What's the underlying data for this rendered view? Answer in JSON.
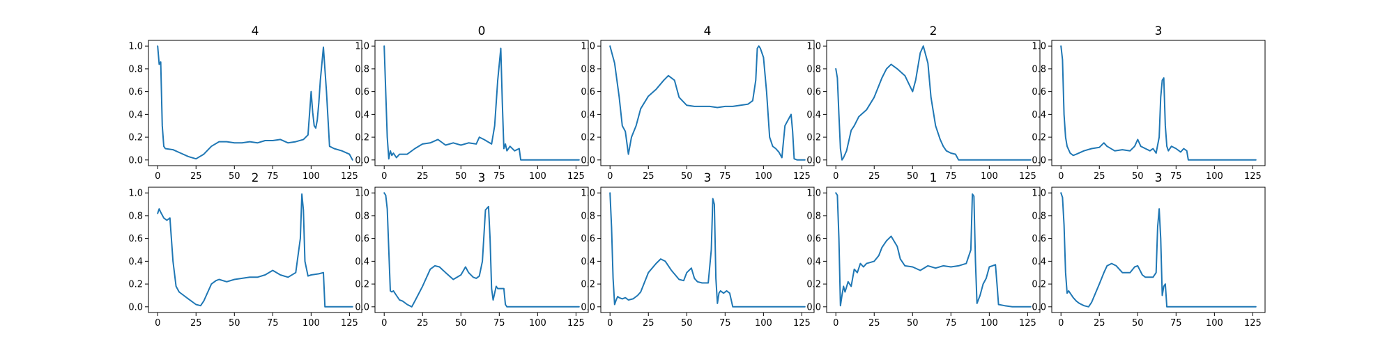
{
  "chart_data": [
    {
      "type": "line",
      "title": "4",
      "xlim": [
        -6,
        133
      ],
      "ylim": [
        -0.05,
        1.05
      ],
      "xticks": [
        0,
        25,
        50,
        75,
        100,
        125
      ],
      "yticks": [
        0.0,
        0.2,
        0.4,
        0.6,
        0.8,
        1.0
      ],
      "x": [
        0,
        1,
        2,
        3,
        4,
        5,
        10,
        15,
        20,
        25,
        30,
        35,
        40,
        45,
        50,
        55,
        60,
        65,
        70,
        75,
        80,
        85,
        90,
        95,
        98,
        100,
        101,
        102,
        103,
        104,
        105,
        106,
        108,
        110,
        112,
        115,
        120,
        125,
        127
      ],
      "y": [
        1.0,
        0.84,
        0.86,
        0.3,
        0.12,
        0.1,
        0.09,
        0.06,
        0.03,
        0.01,
        0.05,
        0.12,
        0.16,
        0.16,
        0.15,
        0.15,
        0.16,
        0.15,
        0.17,
        0.17,
        0.18,
        0.15,
        0.16,
        0.18,
        0.22,
        0.6,
        0.42,
        0.3,
        0.28,
        0.35,
        0.5,
        0.7,
        0.99,
        0.6,
        0.12,
        0.1,
        0.08,
        0.05,
        0.0
      ]
    },
    {
      "type": "line",
      "title": "0",
      "xlim": [
        -6,
        133
      ],
      "ylim": [
        -0.05,
        1.05
      ],
      "xticks": [
        0,
        25,
        50,
        75,
        100,
        125
      ],
      "yticks": [
        0.0,
        0.2,
        0.4,
        0.6,
        0.8,
        1.0
      ],
      "x": [
        0,
        1,
        2,
        3,
        4,
        5,
        6,
        8,
        10,
        15,
        20,
        25,
        30,
        35,
        40,
        45,
        50,
        55,
        60,
        62,
        65,
        70,
        72,
        74,
        76,
        77,
        78,
        79,
        80,
        82,
        85,
        88,
        89,
        90,
        127
      ],
      "y": [
        1.0,
        0.6,
        0.2,
        0.01,
        0.08,
        0.04,
        0.06,
        0.02,
        0.05,
        0.05,
        0.1,
        0.14,
        0.15,
        0.18,
        0.13,
        0.15,
        0.13,
        0.15,
        0.14,
        0.2,
        0.18,
        0.14,
        0.3,
        0.7,
        0.98,
        0.5,
        0.1,
        0.14,
        0.08,
        0.12,
        0.08,
        0.1,
        0.0,
        0.0,
        0.0
      ]
    },
    {
      "type": "line",
      "title": "4",
      "xlim": [
        -6,
        133
      ],
      "ylim": [
        -0.05,
        1.05
      ],
      "xticks": [
        0,
        25,
        50,
        75,
        100,
        125
      ],
      "yticks": [
        0.0,
        0.2,
        0.4,
        0.6,
        0.8,
        1.0
      ],
      "x": [
        0,
        3,
        6,
        8,
        10,
        12,
        14,
        17,
        20,
        25,
        30,
        35,
        38,
        42,
        45,
        50,
        55,
        60,
        65,
        70,
        75,
        80,
        85,
        90,
        93,
        95,
        96,
        97,
        98,
        100,
        102,
        104,
        106,
        108,
        110,
        112,
        114,
        116,
        118,
        119,
        120,
        122,
        125,
        127
      ],
      "y": [
        1.0,
        0.85,
        0.55,
        0.3,
        0.25,
        0.05,
        0.2,
        0.3,
        0.45,
        0.56,
        0.62,
        0.7,
        0.74,
        0.7,
        0.55,
        0.48,
        0.47,
        0.47,
        0.47,
        0.46,
        0.47,
        0.47,
        0.48,
        0.49,
        0.52,
        0.7,
        0.98,
        1.0,
        0.98,
        0.9,
        0.6,
        0.2,
        0.12,
        0.1,
        0.07,
        0.02,
        0.3,
        0.35,
        0.4,
        0.25,
        0.01,
        0.0,
        0.0,
        0.0
      ]
    },
    {
      "type": "line",
      "title": "2",
      "xlim": [
        -6,
        133
      ],
      "ylim": [
        -0.05,
        1.05
      ],
      "xticks": [
        0,
        25,
        50,
        75,
        100,
        125
      ],
      "yticks": [
        0.0,
        0.2,
        0.4,
        0.6,
        0.8,
        1.0
      ],
      "x": [
        0,
        1,
        2,
        3,
        4,
        5,
        7,
        10,
        12,
        15,
        20,
        25,
        30,
        33,
        36,
        40,
        45,
        50,
        52,
        55,
        57,
        60,
        62,
        65,
        68,
        70,
        72,
        75,
        78,
        80,
        127
      ],
      "y": [
        0.8,
        0.72,
        0.4,
        0.1,
        0.0,
        0.02,
        0.08,
        0.26,
        0.3,
        0.38,
        0.44,
        0.55,
        0.72,
        0.8,
        0.84,
        0.8,
        0.74,
        0.6,
        0.7,
        0.94,
        1.0,
        0.85,
        0.55,
        0.3,
        0.18,
        0.12,
        0.08,
        0.06,
        0.05,
        0.0,
        0.0
      ]
    },
    {
      "type": "line",
      "title": "3",
      "xlim": [
        -6,
        133
      ],
      "ylim": [
        -0.05,
        1.05
      ],
      "xticks": [
        0,
        25,
        50,
        75,
        100,
        125
      ],
      "yticks": [
        0.0,
        0.2,
        0.4,
        0.6,
        0.8,
        1.0
      ],
      "x": [
        0,
        1,
        2,
        3,
        4,
        6,
        8,
        10,
        15,
        20,
        25,
        28,
        30,
        35,
        40,
        45,
        48,
        50,
        52,
        55,
        58,
        60,
        62,
        64,
        65,
        66,
        67,
        68,
        69,
        70,
        72,
        75,
        78,
        80,
        82,
        83,
        127
      ],
      "y": [
        1.0,
        0.88,
        0.4,
        0.2,
        0.12,
        0.06,
        0.04,
        0.05,
        0.08,
        0.1,
        0.11,
        0.15,
        0.12,
        0.08,
        0.09,
        0.08,
        0.12,
        0.18,
        0.12,
        0.1,
        0.08,
        0.1,
        0.06,
        0.2,
        0.55,
        0.7,
        0.72,
        0.3,
        0.12,
        0.08,
        0.12,
        0.1,
        0.07,
        0.1,
        0.08,
        0.0,
        0.0
      ]
    },
    {
      "type": "line",
      "title": "2",
      "xlim": [
        -6,
        133
      ],
      "ylim": [
        -0.05,
        1.05
      ],
      "xticks": [
        0,
        25,
        50,
        75,
        100,
        125
      ],
      "yticks": [
        0.0,
        0.2,
        0.4,
        0.6,
        0.8,
        1.0
      ],
      "x": [
        0,
        1,
        2,
        4,
        6,
        8,
        10,
        12,
        14,
        17,
        20,
        25,
        28,
        30,
        35,
        38,
        40,
        45,
        50,
        55,
        60,
        65,
        70,
        75,
        80,
        85,
        90,
        93,
        94,
        95,
        96,
        98,
        100,
        105,
        108,
        109,
        110,
        127
      ],
      "y": [
        0.82,
        0.86,
        0.83,
        0.78,
        0.76,
        0.78,
        0.4,
        0.18,
        0.13,
        0.1,
        0.07,
        0.02,
        0.01,
        0.05,
        0.2,
        0.23,
        0.24,
        0.22,
        0.24,
        0.25,
        0.26,
        0.26,
        0.28,
        0.32,
        0.28,
        0.26,
        0.3,
        0.6,
        0.99,
        0.85,
        0.4,
        0.27,
        0.28,
        0.29,
        0.3,
        0.0,
        0.0,
        0.0
      ]
    },
    {
      "type": "line",
      "title": "3",
      "xlim": [
        -6,
        133
      ],
      "ylim": [
        -0.05,
        1.05
      ],
      "xticks": [
        0,
        25,
        50,
        75,
        100,
        125
      ],
      "yticks": [
        0.0,
        0.2,
        0.4,
        0.6,
        0.8,
        1.0
      ],
      "x": [
        0,
        1,
        2,
        3,
        4,
        5,
        6,
        8,
        10,
        12,
        15,
        18,
        20,
        25,
        30,
        33,
        36,
        40,
        45,
        50,
        53,
        55,
        58,
        60,
        62,
        64,
        66,
        68,
        69,
        70,
        71,
        72,
        73,
        74,
        76,
        78,
        79,
        80,
        82,
        127
      ],
      "y": [
        1.0,
        0.98,
        0.86,
        0.5,
        0.14,
        0.13,
        0.14,
        0.1,
        0.06,
        0.05,
        0.02,
        0.0,
        0.05,
        0.18,
        0.33,
        0.36,
        0.35,
        0.3,
        0.24,
        0.28,
        0.35,
        0.3,
        0.26,
        0.25,
        0.27,
        0.4,
        0.85,
        0.88,
        0.6,
        0.16,
        0.06,
        0.12,
        0.18,
        0.16,
        0.16,
        0.16,
        0.02,
        0.0,
        0.0,
        0.0
      ]
    },
    {
      "type": "line",
      "title": "3",
      "xlim": [
        -6,
        133
      ],
      "ylim": [
        -0.05,
        1.05
      ],
      "xticks": [
        0,
        25,
        50,
        75,
        100,
        125
      ],
      "yticks": [
        0.0,
        0.2,
        0.4,
        0.6,
        0.8,
        1.0
      ],
      "x": [
        0,
        1,
        2,
        3,
        4,
        5,
        6,
        8,
        10,
        12,
        15,
        18,
        20,
        25,
        30,
        33,
        36,
        40,
        45,
        48,
        50,
        53,
        55,
        57,
        60,
        64,
        66,
        67,
        68,
        69,
        70,
        71,
        72,
        74,
        76,
        78,
        80,
        127
      ],
      "y": [
        1.0,
        0.7,
        0.25,
        0.02,
        0.06,
        0.09,
        0.08,
        0.07,
        0.08,
        0.06,
        0.07,
        0.1,
        0.13,
        0.3,
        0.38,
        0.42,
        0.4,
        0.32,
        0.24,
        0.23,
        0.3,
        0.34,
        0.25,
        0.22,
        0.21,
        0.21,
        0.5,
        0.95,
        0.9,
        0.25,
        0.03,
        0.12,
        0.14,
        0.12,
        0.14,
        0.12,
        0.0,
        0.0
      ]
    },
    {
      "type": "line",
      "title": "1",
      "xlim": [
        -6,
        133
      ],
      "ylim": [
        -0.05,
        1.05
      ],
      "xticks": [
        0,
        25,
        50,
        75,
        100,
        125
      ],
      "yticks": [
        0.0,
        0.2,
        0.4,
        0.6,
        0.8,
        1.0
      ],
      "x": [
        0,
        1,
        2,
        3,
        4,
        5,
        6,
        8,
        10,
        12,
        14,
        16,
        18,
        20,
        25,
        28,
        30,
        33,
        36,
        40,
        42,
        45,
        50,
        55,
        60,
        65,
        70,
        75,
        80,
        85,
        88,
        89,
        90,
        91,
        92,
        94,
        96,
        98,
        100,
        102,
        104,
        105,
        106,
        110,
        115,
        127
      ],
      "y": [
        1.0,
        0.98,
        0.6,
        0.01,
        0.1,
        0.18,
        0.13,
        0.22,
        0.18,
        0.33,
        0.3,
        0.38,
        0.35,
        0.38,
        0.4,
        0.45,
        0.52,
        0.58,
        0.62,
        0.53,
        0.42,
        0.36,
        0.35,
        0.32,
        0.36,
        0.34,
        0.36,
        0.35,
        0.36,
        0.38,
        0.5,
        0.99,
        0.97,
        0.4,
        0.03,
        0.1,
        0.2,
        0.25,
        0.35,
        0.36,
        0.37,
        0.2,
        0.02,
        0.01,
        0.0,
        0.0
      ]
    },
    {
      "type": "line",
      "title": "3",
      "xlim": [
        -6,
        133
      ],
      "ylim": [
        -0.05,
        1.05
      ],
      "xticks": [
        0,
        25,
        50,
        75,
        100,
        125
      ],
      "yticks": [
        0.0,
        0.2,
        0.4,
        0.6,
        0.8,
        1.0
      ],
      "x": [
        0,
        1,
        2,
        3,
        4,
        5,
        6,
        8,
        10,
        12,
        15,
        18,
        20,
        25,
        28,
        30,
        33,
        36,
        40,
        45,
        48,
        50,
        53,
        55,
        57,
        60,
        62,
        63,
        64,
        65,
        66,
        67,
        68,
        69,
        70,
        127
      ],
      "y": [
        1.0,
        0.96,
        0.72,
        0.3,
        0.12,
        0.14,
        0.12,
        0.08,
        0.05,
        0.03,
        0.01,
        0.0,
        0.04,
        0.2,
        0.3,
        0.36,
        0.38,
        0.36,
        0.3,
        0.3,
        0.35,
        0.36,
        0.28,
        0.26,
        0.26,
        0.26,
        0.3,
        0.7,
        0.86,
        0.6,
        0.1,
        0.18,
        0.2,
        0.0,
        0.0,
        0.0
      ]
    }
  ]
}
